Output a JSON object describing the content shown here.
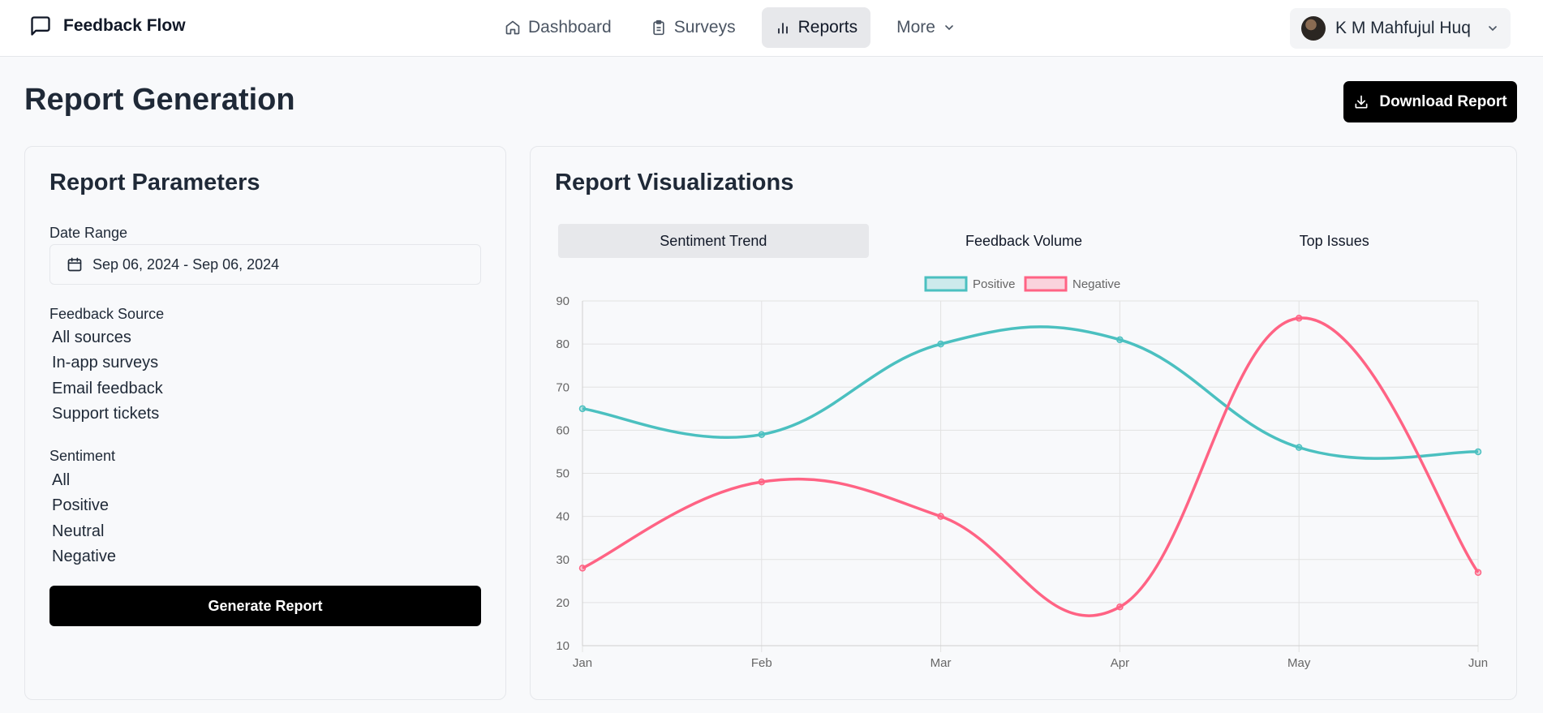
{
  "app": {
    "name": "Feedback Flow"
  },
  "nav": {
    "items": [
      {
        "label": "Dashboard",
        "icon": "home-icon",
        "active": false
      },
      {
        "label": "Surveys",
        "icon": "clipboard-icon",
        "active": false
      },
      {
        "label": "Reports",
        "icon": "bar-chart-icon",
        "active": true
      },
      {
        "label": "More",
        "icon": "chevron-down-icon",
        "active": false
      }
    ]
  },
  "user": {
    "name": "K M Mahfujul Huq"
  },
  "page": {
    "title": "Report Generation",
    "download_label": "Download Report"
  },
  "params": {
    "title": "Report Parameters",
    "date_label": "Date Range",
    "date_value": "Sep 06, 2024 - Sep 06, 2024",
    "source_label": "Feedback Source",
    "sources": [
      "All sources",
      "In-app surveys",
      "Email feedback",
      "Support tickets"
    ],
    "sentiment_label": "Sentiment",
    "sentiments": [
      "All",
      "Positive",
      "Neutral",
      "Negative"
    ],
    "generate_label": "Generate Report"
  },
  "viz": {
    "title": "Report Visualizations",
    "tabs": [
      {
        "label": "Sentiment Trend",
        "active": true
      },
      {
        "label": "Feedback Volume",
        "active": false
      },
      {
        "label": "Top Issues",
        "active": false
      }
    ]
  },
  "chart_data": {
    "type": "line",
    "categories": [
      "Jan",
      "Feb",
      "Mar",
      "Apr",
      "May",
      "Jun"
    ],
    "series": [
      {
        "name": "Positive",
        "values": [
          65,
          59,
          80,
          81,
          56,
          55
        ],
        "color": "#4bc0c0"
      },
      {
        "name": "Negative",
        "values": [
          28,
          48,
          40,
          19,
          86,
          27
        ],
        "color": "#ff6384"
      }
    ],
    "ylim": [
      10,
      90
    ],
    "yticks": [
      90,
      80,
      70,
      60,
      50,
      40,
      30,
      20,
      10
    ],
    "legend": "top-center",
    "grid": true
  }
}
